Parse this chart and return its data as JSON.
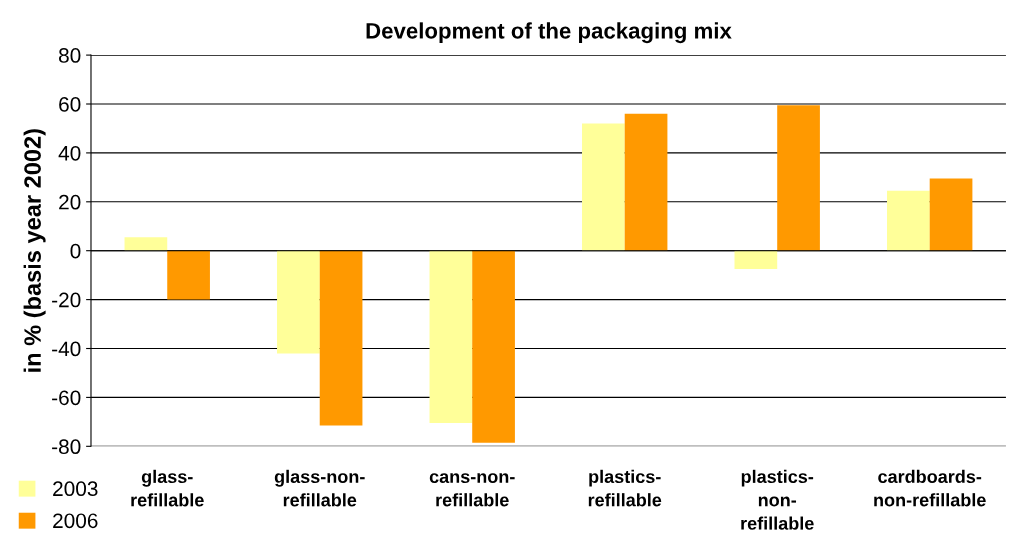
{
  "chart_data": {
    "type": "bar",
    "title": "Development of the packaging mix",
    "ylabel": "in % (basis year 2002)",
    "categories": [
      "glass-\nrefillable",
      "glass-non-\nrefillable",
      "cans-non-\nrefillable",
      "plastics-\nrefillable",
      "plastics-\nnon-\nrefillable",
      "cardboards-\nnon-refillable"
    ],
    "series": [
      {
        "name": "2003",
        "color": "#ffff99",
        "values": [
          5.5,
          -42,
          -70.5,
          52,
          -7.5,
          24.5
        ]
      },
      {
        "name": "2006",
        "color": "#ff9900",
        "values": [
          -20,
          -71.5,
          -78.5,
          56,
          59.5,
          29.5
        ]
      }
    ],
    "ylim": [
      -80,
      80
    ],
    "yticks": [
      -80,
      -60,
      -40,
      -20,
      0,
      20,
      40,
      60,
      80
    ],
    "grid": "y",
    "legend": "bottom left"
  }
}
